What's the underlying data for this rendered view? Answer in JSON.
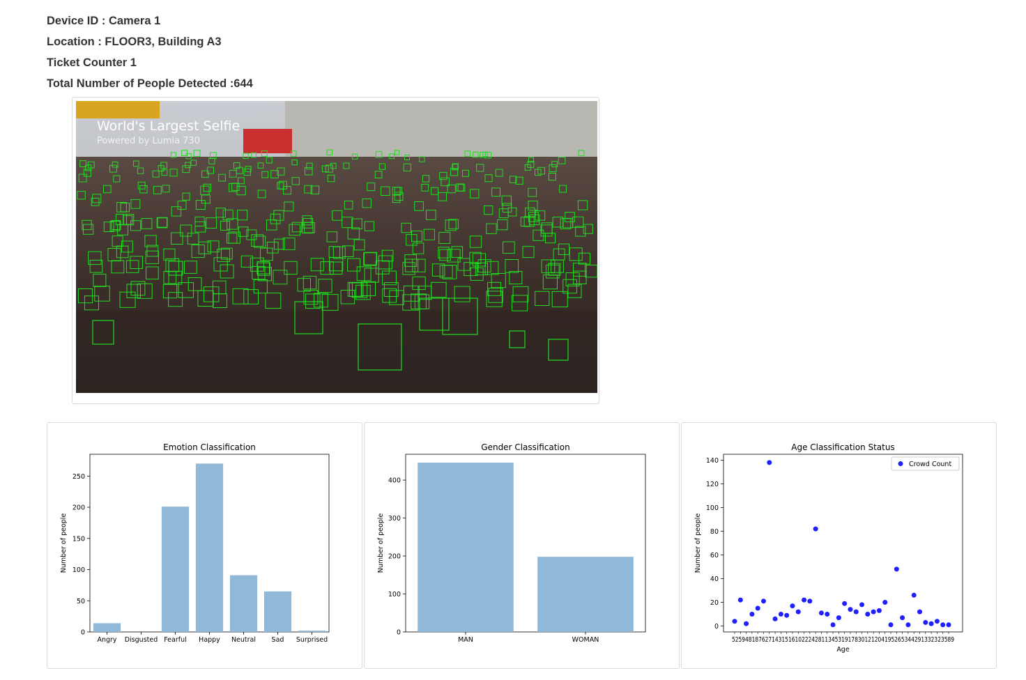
{
  "info": {
    "device": "Device ID : Camera 1",
    "location": "Location : FLOOR3, Building A3",
    "counter": "Ticket Counter 1",
    "total": "Total Number of People Detected :644"
  },
  "photo": {
    "title": "World's Largest Selfie",
    "subtitle": "Powered by Lumia 730",
    "box_color": "#22dd22"
  },
  "charts": {
    "emotion": {
      "type": "bar",
      "title": "Emotion Classification",
      "ylabel": "Number of people",
      "xlabel": "",
      "categories": [
        "Angry",
        "Disgusted",
        "Fearful",
        "Happy",
        "Neutral",
        "Sad",
        "Surprised"
      ],
      "values": [
        14,
        0,
        201,
        270,
        91,
        65,
        2
      ],
      "ylim": [
        0,
        285
      ],
      "yticks": [
        0,
        50,
        100,
        150,
        200,
        250
      ],
      "color": "#90b8d9"
    },
    "gender": {
      "type": "bar",
      "title": "Gender Classification",
      "ylabel": "Number of people",
      "xlabel": "",
      "categories": [
        "MAN",
        "WOMAN"
      ],
      "values": [
        446,
        198
      ],
      "ylim": [
        0,
        468
      ],
      "yticks": [
        0,
        100,
        200,
        300,
        400
      ],
      "color": "#90b8d9"
    },
    "age": {
      "type": "scatter",
      "title": "Age Classification Status",
      "ylabel": "Number of people",
      "xlabel": "Age",
      "legend": "Crowd Count",
      "x_tick_text": "5259481876271431516102224281134531917830121204195265344291332323589",
      "values": [
        4,
        22,
        2,
        10,
        15,
        21,
        138,
        6,
        10,
        9,
        17,
        12,
        22,
        21,
        82,
        11,
        10,
        1,
        7,
        19,
        14,
        12,
        18,
        10,
        12,
        13,
        20,
        1,
        48,
        7,
        1,
        26,
        12,
        3,
        2,
        4,
        1,
        1
      ],
      "ylim": [
        -5,
        145
      ],
      "yticks": [
        0,
        20,
        40,
        60,
        80,
        100,
        120,
        140
      ],
      "color": "#1f1fff"
    }
  },
  "chart_data": [
    {
      "type": "bar",
      "title": "Emotion Classification",
      "ylabel": "Number of people",
      "categories": [
        "Angry",
        "Disgusted",
        "Fearful",
        "Happy",
        "Neutral",
        "Sad",
        "Surprised"
      ],
      "values": [
        14,
        0,
        201,
        270,
        91,
        65,
        2
      ],
      "ylim": [
        0,
        285
      ]
    },
    {
      "type": "bar",
      "title": "Gender Classification",
      "ylabel": "Number of people",
      "categories": [
        "MAN",
        "WOMAN"
      ],
      "values": [
        446,
        198
      ],
      "ylim": [
        0,
        468
      ]
    },
    {
      "type": "scatter",
      "title": "Age Classification Status",
      "xlabel": "Age",
      "ylabel": "Number of people",
      "legend": "Crowd Count",
      "values": [
        4,
        22,
        2,
        10,
        15,
        21,
        138,
        6,
        10,
        9,
        17,
        12,
        22,
        21,
        82,
        11,
        10,
        1,
        7,
        19,
        14,
        12,
        18,
        10,
        12,
        13,
        20,
        1,
        48,
        7,
        1,
        26,
        12,
        3,
        2,
        4,
        1,
        1
      ],
      "ylim": [
        -5,
        145
      ]
    }
  ]
}
